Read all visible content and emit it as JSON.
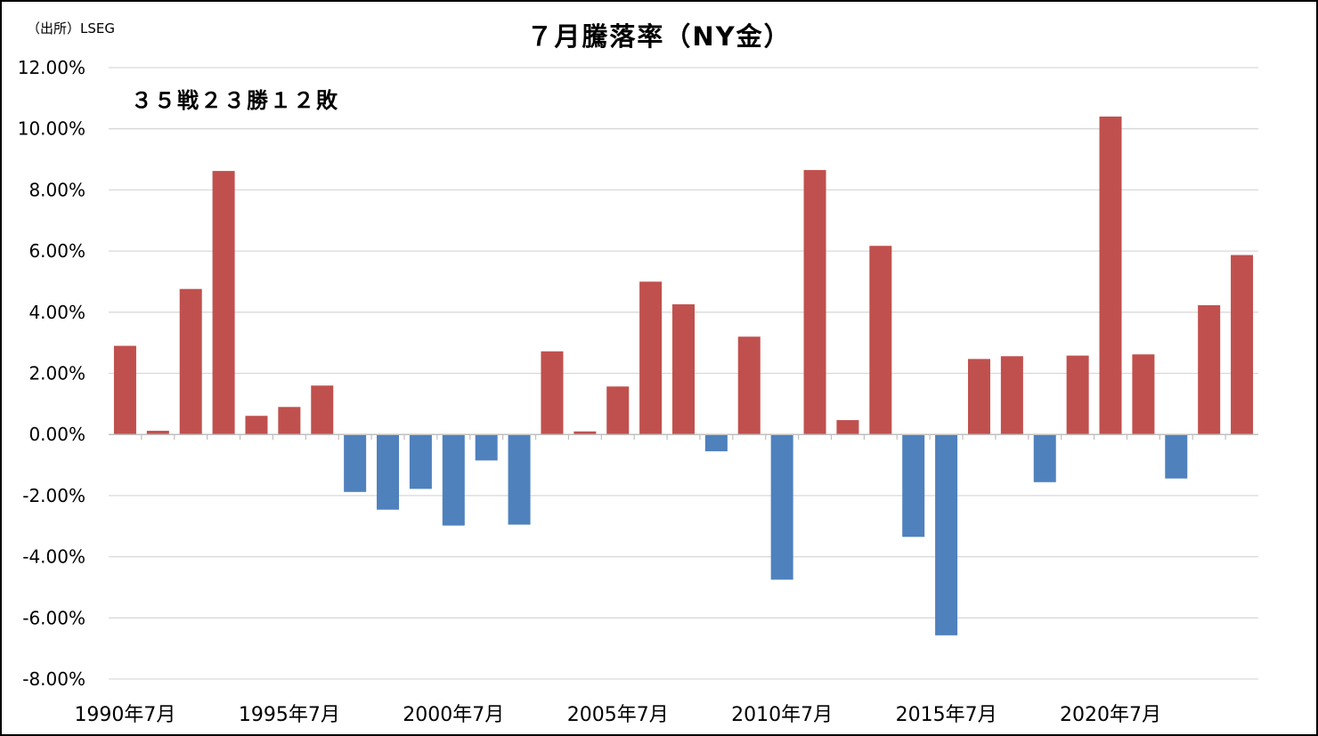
{
  "chart_data": {
    "type": "bar",
    "title": "７月騰落率（NY金）",
    "source": "（出所）LSEG",
    "annotation": "３５戦２３勝１２敗",
    "xlabel": "",
    "ylabel": "",
    "ylim": [
      -8,
      12
    ],
    "y_ticks": [
      "12.00%",
      "10.00%",
      "8.00%",
      "6.00%",
      "4.00%",
      "2.00%",
      "0.00%",
      "-2.00%",
      "-4.00%",
      "-6.00%",
      "-8.00%"
    ],
    "x_tick_labels": [
      "1990年7月",
      "1995年7月",
      "2000年7月",
      "2005年7月",
      "2010年7月",
      "2015年7月",
      "2020年7月"
    ],
    "grid": true,
    "legend": "none",
    "categories": [
      "1990年7月",
      "1991年7月",
      "1992年7月",
      "1993年7月",
      "1994年7月",
      "1995年7月",
      "1996年7月",
      "1997年7月",
      "1998年7月",
      "1999年7月",
      "2000年7月",
      "2001年7月",
      "2002年7月",
      "2003年7月",
      "2004年7月",
      "2005年7月",
      "2006年7月",
      "2007年7月",
      "2008年7月",
      "2009年7月",
      "2010年7月",
      "2011年7月",
      "2012年7月",
      "2013年7月",
      "2014年7月",
      "2015年7月",
      "2016年7月",
      "2017年7月",
      "2018年7月",
      "2019年7月",
      "2020年7月",
      "2021年7月",
      "2022年7月",
      "2023年7月",
      "2024年7月"
    ],
    "values": [
      2.9,
      0.12,
      4.76,
      8.62,
      0.61,
      0.9,
      1.6,
      -1.88,
      -2.46,
      -1.78,
      -2.98,
      -0.85,
      -2.95,
      2.72,
      0.1,
      1.57,
      5.0,
      4.26,
      -0.55,
      3.2,
      -4.75,
      8.65,
      0.47,
      6.17,
      -3.35,
      -6.57,
      2.47,
      2.56,
      -1.56,
      2.58,
      10.4,
      2.62,
      -1.44,
      4.23,
      5.87
    ],
    "colors": {
      "positive": "#C0504D",
      "negative": "#4F81BD",
      "grid": "#D9D9D9",
      "axis": "#BFBFBF"
    }
  }
}
